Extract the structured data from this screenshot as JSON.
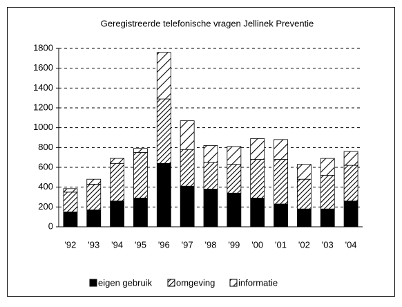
{
  "chart_data": {
    "type": "bar",
    "stacked": true,
    "title": "Geregistreerde telefonische vragen Jellinek Preventie",
    "categories": [
      "'92",
      "'93",
      "'94",
      "'95",
      "'96",
      "'97",
      "'98",
      "'99",
      "'00",
      "'01",
      "'02",
      "'03",
      "'04"
    ],
    "series": [
      {
        "name": "eigen gebruik",
        "color": "#000000",
        "values": [
          150,
          170,
          260,
          290,
          640,
          410,
          380,
          340,
          290,
          230,
          180,
          180,
          260
        ]
      },
      {
        "name": "omgeving",
        "color": "#000000",
        "values": [
          200,
          260,
          380,
          460,
          650,
          370,
          270,
          290,
          390,
          450,
          300,
          340,
          360
        ]
      },
      {
        "name": "informatie",
        "color": "#000000",
        "values": [
          35,
          50,
          50,
          40,
          470,
          290,
          170,
          180,
          210,
          200,
          150,
          170,
          140
        ]
      }
    ],
    "ylim": [
      0,
      1800
    ],
    "yticks": [
      0,
      200,
      400,
      600,
      800,
      1000,
      1200,
      1400,
      1600,
      1800
    ],
    "grid": true,
    "legend": "bottom"
  }
}
